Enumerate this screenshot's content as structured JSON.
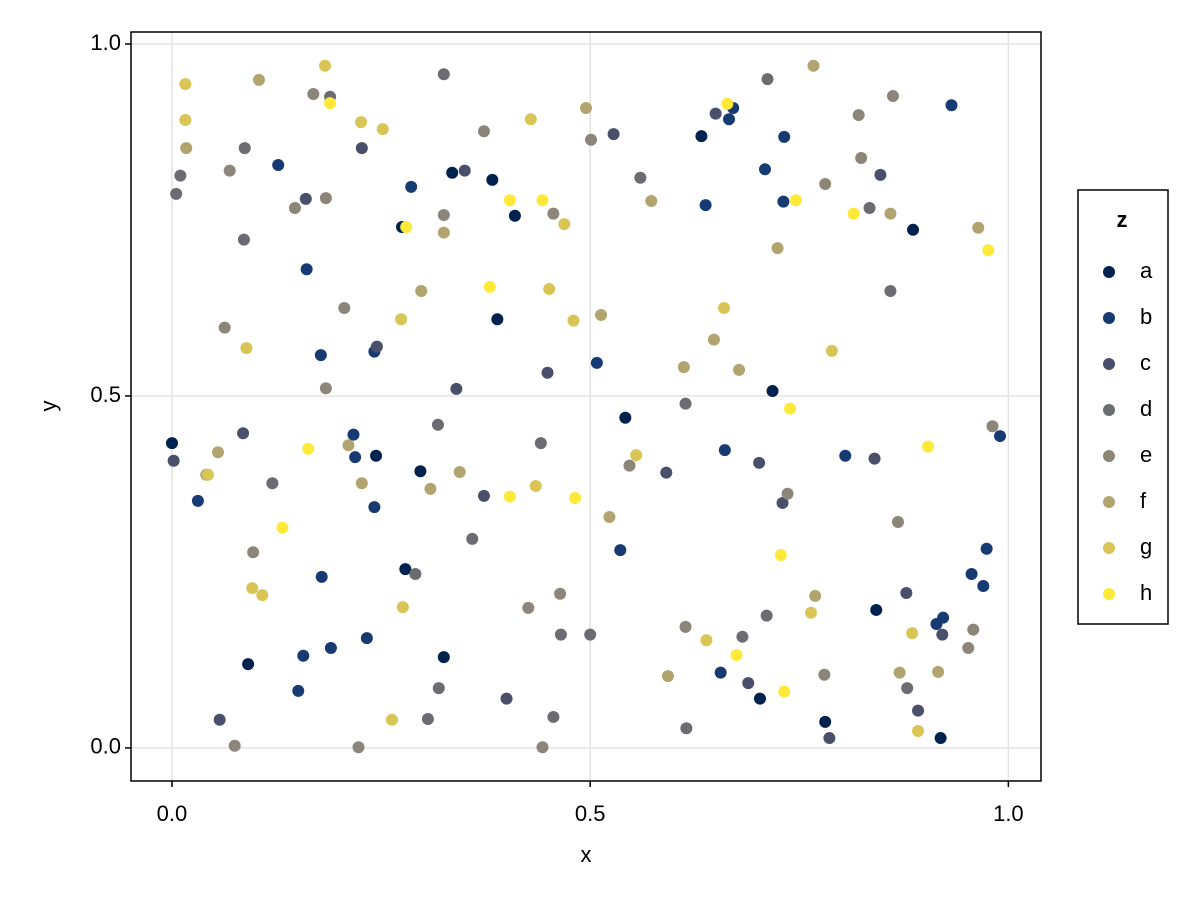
{
  "chart_data": {
    "type": "scatter",
    "x_label": "x",
    "y_label": "y",
    "legend_title": "z",
    "legend": "right",
    "grid": true,
    "xlim": [
      -0.049,
      1.039
    ],
    "ylim": [
      -0.047,
      1.017
    ],
    "xticks": [
      {
        "value": 0,
        "label": "0.0"
      },
      {
        "value": 0.5,
        "label": "0.5"
      },
      {
        "value": 1,
        "label": "1.0"
      }
    ],
    "yticks": [
      {
        "value": 0,
        "label": "0.0"
      },
      {
        "value": 0.5,
        "label": "0.5"
      },
      {
        "value": 1,
        "label": "1.0"
      }
    ],
    "series": [
      {
        "name": "a",
        "color": "#00224e",
        "x": [
          0.0,
          0.091,
          0.244,
          0.279,
          0.297,
          0.325,
          0.335,
          0.383,
          0.389,
          0.41,
          0.542,
          0.633,
          0.703,
          0.718,
          0.781,
          0.842,
          0.886,
          0.919,
          0.275
        ],
        "values": [
          0.433,
          0.119,
          0.415,
          0.254,
          0.393,
          0.129,
          0.817,
          0.807,
          0.609,
          0.756,
          0.469,
          0.869,
          0.07,
          0.507,
          0.037,
          0.196,
          0.736,
          0.014,
          0.74
        ]
      },
      {
        "name": "b",
        "color": "#173a73",
        "x": [
          0.031,
          0.127,
          0.161,
          0.178,
          0.179,
          0.157,
          0.151,
          0.19,
          0.217,
          0.219,
          0.233,
          0.242,
          0.242,
          0.286,
          0.508,
          0.536,
          0.638,
          0.666,
          0.671,
          0.709,
          0.731,
          0.732,
          0.661,
          0.656,
          0.805,
          0.914,
          0.922,
          0.956,
          0.97,
          0.974,
          0.99,
          0.932
        ],
        "values": [
          0.351,
          0.828,
          0.68,
          0.558,
          0.243,
          0.131,
          0.081,
          0.142,
          0.445,
          0.413,
          0.156,
          0.563,
          0.342,
          0.797,
          0.547,
          0.281,
          0.771,
          0.893,
          0.909,
          0.822,
          0.776,
          0.868,
          0.423,
          0.107,
          0.415,
          0.176,
          0.185,
          0.247,
          0.23,
          0.283,
          0.443,
          0.913
        ]
      },
      {
        "name": "c",
        "color": "#4a4f6c",
        "x": [
          0.002,
          0.057,
          0.085,
          0.16,
          0.227,
          0.245,
          0.34,
          0.35,
          0.373,
          0.4,
          0.449,
          0.528,
          0.591,
          0.65,
          0.689,
          0.702,
          0.73,
          0.847,
          0.84,
          0.878,
          0.892,
          0.921,
          0.786
        ],
        "values": [
          0.408,
          0.04,
          0.447,
          0.78,
          0.852,
          0.57,
          0.51,
          0.82,
          0.358,
          0.07,
          0.533,
          0.872,
          0.391,
          0.901,
          0.092,
          0.405,
          0.348,
          0.814,
          0.411,
          0.22,
          0.053,
          0.161,
          0.014
        ]
      },
      {
        "name": "d",
        "color": "#6b6c71",
        "x": [
          0.005,
          0.01,
          0.087,
          0.086,
          0.12,
          0.189,
          0.306,
          0.319,
          0.325,
          0.359,
          0.441,
          0.456,
          0.465,
          0.5,
          0.56,
          0.614,
          0.615,
          0.682,
          0.712,
          0.711,
          0.879,
          0.859,
          0.834,
          0.291,
          0.318
        ],
        "values": [
          0.787,
          0.813,
          0.852,
          0.722,
          0.376,
          0.925,
          0.041,
          0.085,
          0.957,
          0.297,
          0.433,
          0.044,
          0.161,
          0.161,
          0.81,
          0.489,
          0.028,
          0.158,
          0.95,
          0.188,
          0.085,
          0.649,
          0.767,
          0.247,
          0.459
        ]
      },
      {
        "name": "e",
        "color": "#8c8579",
        "x": [
          0.069,
          0.063,
          0.147,
          0.169,
          0.184,
          0.184,
          0.206,
          0.097,
          0.325,
          0.373,
          0.426,
          0.456,
          0.501,
          0.547,
          0.614,
          0.736,
          0.781,
          0.824,
          0.821,
          0.868,
          0.958,
          0.981,
          0.952,
          0.862,
          0.223,
          0.075,
          0.443,
          0.78,
          0.464
        ],
        "values": [
          0.82,
          0.597,
          0.767,
          0.929,
          0.781,
          0.511,
          0.625,
          0.278,
          0.757,
          0.876,
          0.199,
          0.759,
          0.864,
          0.401,
          0.172,
          0.361,
          0.801,
          0.838,
          0.899,
          0.321,
          0.168,
          0.457,
          0.142,
          0.926,
          0.001,
          0.003,
          0.001,
          0.104,
          0.219
        ]
      },
      {
        "name": "f",
        "color": "#b1a46f",
        "x": [
          0.017,
          0.041,
          0.055,
          0.104,
          0.211,
          0.227,
          0.298,
          0.309,
          0.344,
          0.325,
          0.495,
          0.513,
          0.523,
          0.573,
          0.593,
          0.612,
          0.648,
          0.678,
          0.724,
          0.767,
          0.859,
          0.87,
          0.916,
          0.964,
          0.769
        ],
        "values": [
          0.852,
          0.388,
          0.42,
          0.949,
          0.43,
          0.376,
          0.649,
          0.368,
          0.392,
          0.732,
          0.909,
          0.615,
          0.328,
          0.777,
          0.102,
          0.541,
          0.58,
          0.537,
          0.71,
          0.969,
          0.759,
          0.107,
          0.108,
          0.739,
          0.216
        ]
      },
      {
        "name": "g",
        "color": "#d9c456",
        "x": [
          0.016,
          0.016,
          0.043,
          0.089,
          0.096,
          0.108,
          0.276,
          0.274,
          0.226,
          0.252,
          0.263,
          0.429,
          0.435,
          0.451,
          0.469,
          0.48,
          0.555,
          0.66,
          0.639,
          0.789,
          0.764,
          0.885,
          0.892,
          0.183
        ],
        "values": [
          0.943,
          0.892,
          0.388,
          0.568,
          0.227,
          0.217,
          0.2,
          0.609,
          0.889,
          0.879,
          0.04,
          0.893,
          0.372,
          0.652,
          0.744,
          0.607,
          0.416,
          0.625,
          0.153,
          0.564,
          0.192,
          0.163,
          0.024,
          0.969
        ]
      },
      {
        "name": "h",
        "color": "#fee838",
        "x": [
          0.163,
          0.132,
          0.189,
          0.28,
          0.38,
          0.404,
          0.404,
          0.443,
          0.482,
          0.664,
          0.675,
          0.728,
          0.732,
          0.739,
          0.746,
          0.815,
          0.904,
          0.976
        ],
        "values": [
          0.425,
          0.313,
          0.916,
          0.74,
          0.655,
          0.778,
          0.357,
          0.778,
          0.355,
          0.915,
          0.132,
          0.274,
          0.08,
          0.482,
          0.778,
          0.759,
          0.428,
          0.707
        ]
      }
    ]
  }
}
